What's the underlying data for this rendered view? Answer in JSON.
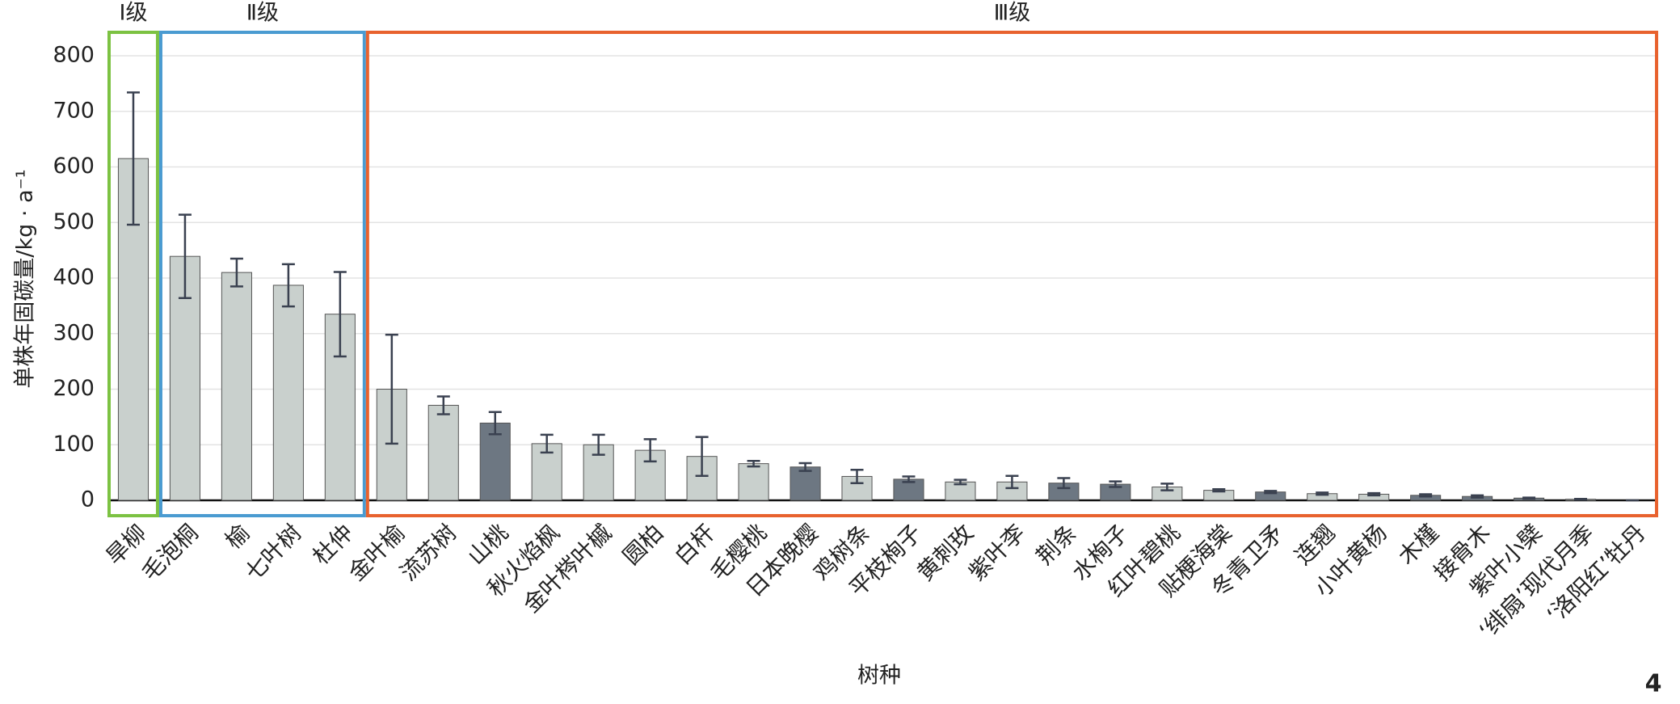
{
  "chart_data": {
    "type": "bar",
    "ylabel": "单株年固碳量/kg · a⁻¹",
    "xlabel": "树种",
    "page_number": "4",
    "categories": [
      "旱柳",
      "毛泡桐",
      "榆",
      "七叶树",
      "杜仲",
      "金叶榆",
      "流苏树",
      "山桃",
      "秋火焰枫",
      "金叶梣叶槭",
      "圆柏",
      "白杆",
      "毛樱桃",
      "日本晚樱",
      "鸡树条",
      "平枝栒子",
      "黄刺玫",
      "紫叶李",
      "荆条",
      "水栒子",
      "红叶碧桃",
      "贴梗海棠",
      "冬青卫矛",
      "连翘",
      "小叶黄杨",
      "木槿",
      "接骨木",
      "紫叶小檗",
      "‘绯扇’现代月季",
      "‘洛阳红’牡丹"
    ],
    "values": [
      615,
      439,
      410,
      387,
      335,
      200,
      171,
      139,
      102,
      100,
      90,
      79,
      66,
      60,
      43,
      38,
      33,
      33,
      31,
      29,
      24,
      18,
      15,
      12,
      11,
      9,
      7,
      4,
      2,
      0
    ],
    "errors": [
      119,
      75,
      25,
      38,
      76,
      98,
      16,
      20,
      16,
      18,
      20,
      35,
      5,
      7,
      12,
      5,
      4,
      11,
      9,
      5,
      6,
      2,
      2,
      2,
      2,
      2,
      2,
      1,
      0.5,
      0
    ],
    "colors": [
      "#c9d0cd",
      "#c9d0cd",
      "#c9d0cd",
      "#c9d0cd",
      "#c9d0cd",
      "#c9d0cd",
      "#c9d0cd",
      "#6d7782",
      "#c9d0cd",
      "#c9d0cd",
      "#c9d0cd",
      "#c9d0cd",
      "#c9d0cd",
      "#6d7782",
      "#c9d0cd",
      "#6d7782",
      "#c9d0cd",
      "#c9d0cd",
      "#6d7782",
      "#6d7782",
      "#c9d0cd",
      "#c9d0cd",
      "#6d7782",
      "#c9d0cd",
      "#c9d0cd",
      "#6d7782",
      "#6d7782",
      "#6d7782",
      "#c9d0cd",
      "#c9d0cd"
    ],
    "groups": [
      {
        "label": "Ⅰ级",
        "start": 0,
        "end": 0,
        "color": "#7cc242"
      },
      {
        "label": "Ⅱ级",
        "start": 1,
        "end": 4,
        "color": "#4a9bd1"
      },
      {
        "label": "Ⅲ级",
        "start": 5,
        "end": 29,
        "color": "#e8622e"
      }
    ],
    "ylim": [
      0,
      800
    ],
    "yticks": [
      0,
      100,
      200,
      300,
      400,
      500,
      600,
      700,
      800
    ],
    "grid": true
  }
}
